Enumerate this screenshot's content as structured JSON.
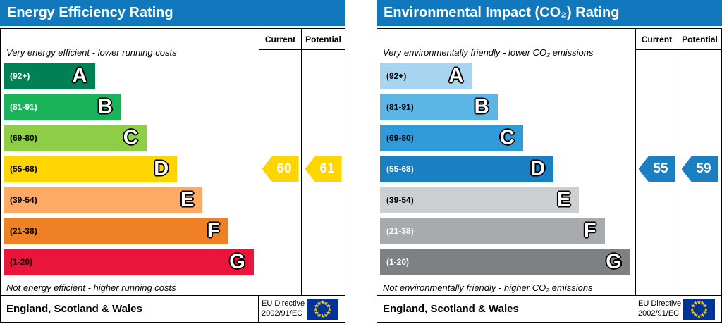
{
  "theme": {
    "header_bg": "#1278be",
    "header_fg": "#ffffff",
    "border_color": "#000000",
    "flag_bg": "#003399",
    "flag_star": "#ffcc00"
  },
  "chart_data": [
    {
      "type": "bar",
      "title": "Energy Efficiency Rating",
      "top_note": "Very energy efficient - lower running costs",
      "bottom_note": "Not energy efficient - higher running costs",
      "columns": [
        "Current",
        "Potential"
      ],
      "score_range": [
        1,
        100
      ],
      "bands": [
        {
          "grade": "A",
          "range_label": "(92+)",
          "min": 92,
          "max": 100,
          "color": "#008054",
          "text_color": "#ffffff",
          "width_pct": 36
        },
        {
          "grade": "B",
          "range_label": "(81-91)",
          "min": 81,
          "max": 91,
          "color": "#19b459",
          "text_color": "#ffffff",
          "width_pct": 46
        },
        {
          "grade": "C",
          "range_label": "(69-80)",
          "min": 69,
          "max": 80,
          "color": "#8dce46",
          "text_color": "#000000",
          "width_pct": 56
        },
        {
          "grade": "D",
          "range_label": "(55-68)",
          "min": 55,
          "max": 68,
          "color": "#ffd500",
          "text_color": "#000000",
          "width_pct": 68
        },
        {
          "grade": "E",
          "range_label": "(39-54)",
          "min": 39,
          "max": 54,
          "color": "#fcaa65",
          "text_color": "#000000",
          "width_pct": 78
        },
        {
          "grade": "F",
          "range_label": "(21-38)",
          "min": 21,
          "max": 38,
          "color": "#ef8023",
          "text_color": "#000000",
          "width_pct": 88
        },
        {
          "grade": "G",
          "range_label": "(1-20)",
          "min": 1,
          "max": 20,
          "color": "#e9153b",
          "text_color": "#000000",
          "width_pct": 98
        }
      ],
      "current": {
        "value": 60,
        "band": "D",
        "arrow_color": "#ffd500"
      },
      "potential": {
        "value": 61,
        "band": "D",
        "arrow_color": "#ffd500"
      },
      "footer_region": "England, Scotland & Wales",
      "footer_directive": [
        "EU Directive",
        "2002/91/EC"
      ]
    },
    {
      "type": "bar",
      "title": "Environmental Impact (CO₂) Rating",
      "top_note": "Very environmentally friendly - lower CO₂ emissions",
      "bottom_note": "Not environmentally friendly - higher CO₂ emissions",
      "columns": [
        "Current",
        "Potential"
      ],
      "score_range": [
        1,
        100
      ],
      "bands": [
        {
          "grade": "A",
          "range_label": "(92+)",
          "min": 92,
          "max": 100,
          "color": "#a9d4ef",
          "text_color": "#000000",
          "width_pct": 36
        },
        {
          "grade": "B",
          "range_label": "(81-91)",
          "min": 81,
          "max": 91,
          "color": "#5bb6e7",
          "text_color": "#000000",
          "width_pct": 46
        },
        {
          "grade": "C",
          "range_label": "(69-80)",
          "min": 69,
          "max": 80,
          "color": "#2f9bd8",
          "text_color": "#000000",
          "width_pct": 56
        },
        {
          "grade": "D",
          "range_label": "(55-68)",
          "min": 55,
          "max": 68,
          "color": "#1b7fc4",
          "text_color": "#ffffff",
          "width_pct": 68
        },
        {
          "grade": "E",
          "range_label": "(39-54)",
          "min": 39,
          "max": 54,
          "color": "#ccd0d2",
          "text_color": "#000000",
          "width_pct": 78
        },
        {
          "grade": "F",
          "range_label": "(21-38)",
          "min": 21,
          "max": 38,
          "color": "#a8abad",
          "text_color": "#ffffff",
          "width_pct": 88
        },
        {
          "grade": "G",
          "range_label": "(1-20)",
          "min": 1,
          "max": 20,
          "color": "#7e8184",
          "text_color": "#ffffff",
          "width_pct": 98
        }
      ],
      "current": {
        "value": 55,
        "band": "D",
        "arrow_color": "#1b7fc4"
      },
      "potential": {
        "value": 59,
        "band": "D",
        "arrow_color": "#1b7fc4"
      },
      "footer_region": "England, Scotland & Wales",
      "footer_directive": [
        "EU Directive",
        "2002/91/EC"
      ]
    }
  ]
}
